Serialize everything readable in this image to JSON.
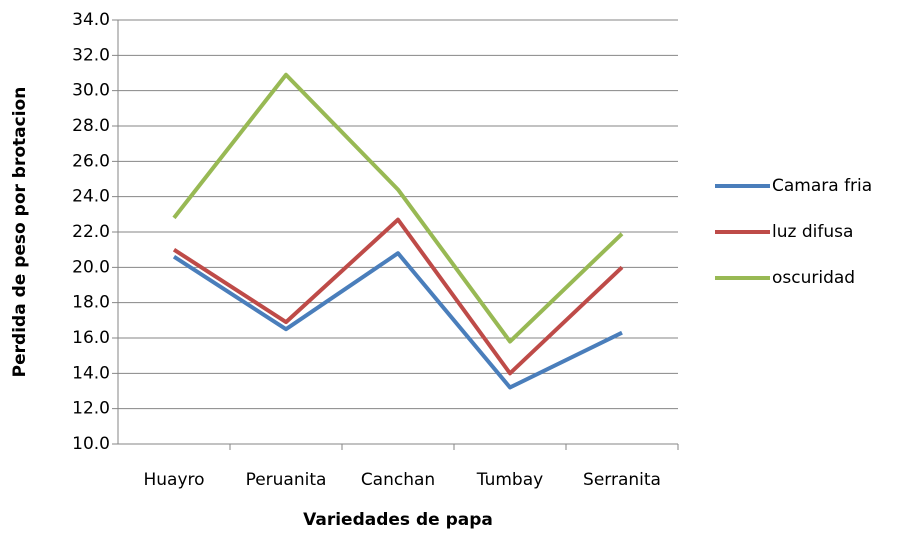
{
  "chart_data": {
    "type": "line",
    "x_label": "Variedades de papa",
    "y_label": "Perdida de peso por brotacion",
    "categories": [
      "Huayro",
      "Peruanita",
      "Canchan",
      "Tumbay",
      "Serranita"
    ],
    "series": [
      {
        "name": "Camara fria",
        "color": "#4a7ebb",
        "values": [
          20.6,
          16.5,
          20.8,
          13.2,
          16.3
        ]
      },
      {
        "name": "luz difusa",
        "color": "#be4b48",
        "values": [
          21.0,
          16.9,
          22.7,
          14.0,
          20.0
        ]
      },
      {
        "name": "oscuridad",
        "color": "#98b954",
        "values": [
          22.8,
          30.9,
          24.4,
          15.8,
          21.9
        ]
      }
    ],
    "ylim": [
      10,
      34
    ],
    "yticks": [
      {
        "value": 10,
        "label": "10.0"
      },
      {
        "value": 12,
        "label": "12.0"
      },
      {
        "value": 14,
        "label": "14.0"
      },
      {
        "value": 16,
        "label": "16.0"
      },
      {
        "value": 18,
        "label": "18.0"
      },
      {
        "value": 20,
        "label": "20.0"
      },
      {
        "value": 22,
        "label": "22.0"
      },
      {
        "value": 24,
        "label": "24.0"
      },
      {
        "value": 26,
        "label": "26.0"
      },
      {
        "value": 28,
        "label": "28.0"
      },
      {
        "value": 30,
        "label": "30.0"
      },
      {
        "value": 32,
        "label": "32.0"
      },
      {
        "value": 34,
        "label": "34.0"
      }
    ],
    "grid": true,
    "legend": "right"
  }
}
